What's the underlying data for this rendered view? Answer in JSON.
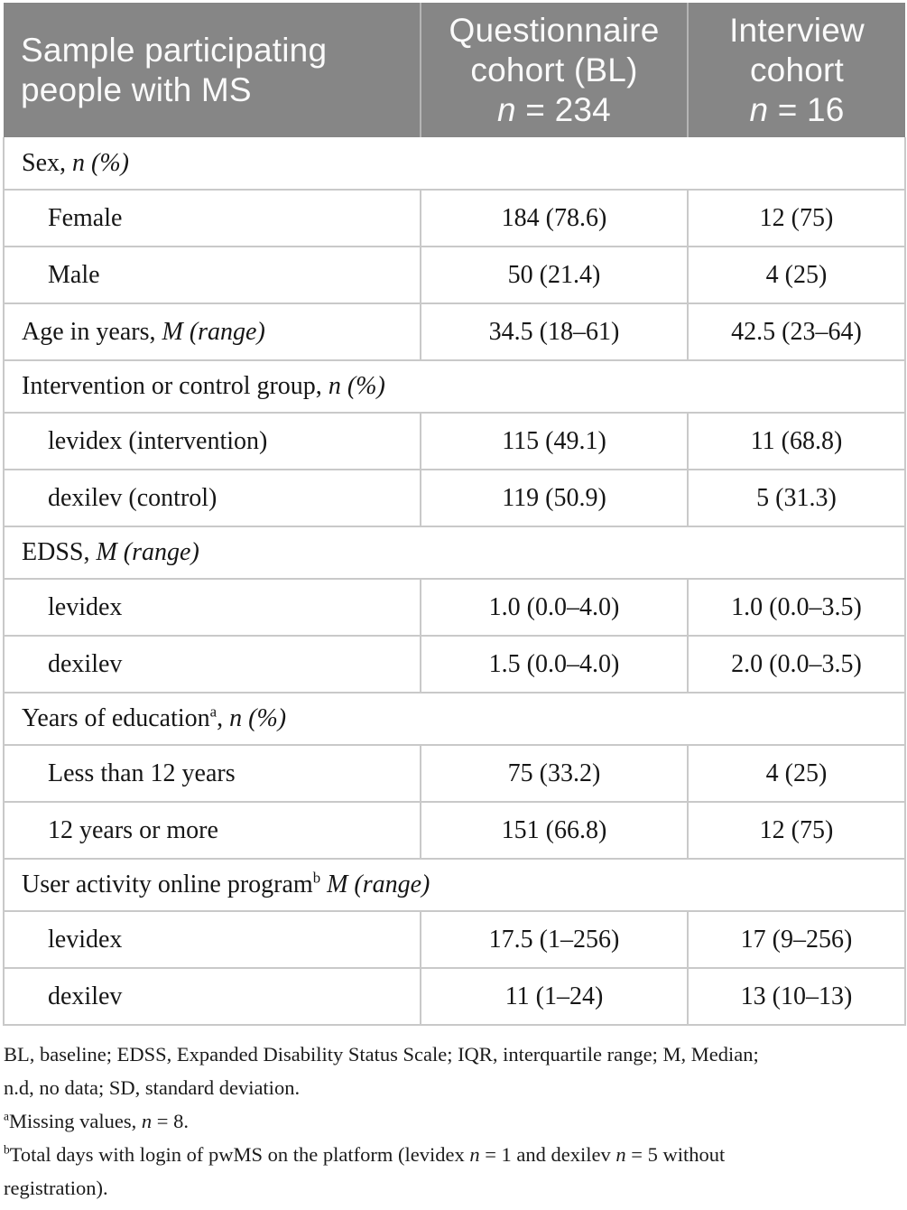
{
  "colors": {
    "header_background": "#868686",
    "header_text": "#fafafa",
    "header_divider": "#b4b4b4",
    "row_border": "#c9c9c9",
    "body_text": "#161616"
  },
  "table": {
    "header": {
      "columns": [
        {
          "id": "sample",
          "label": [
            {
              "t": "Sample participating people with MS"
            }
          ]
        },
        {
          "id": "questionnaire-cohort",
          "label": [
            {
              "t": "Questionnaire cohort (BL)"
            },
            {
              "br": true
            },
            {
              "t": "n",
              "i": true
            },
            {
              "t": " = 234"
            }
          ]
        },
        {
          "id": "interview-cohort",
          "label": [
            {
              "t": "Interview cohort"
            },
            {
              "br": true
            },
            {
              "t": "n",
              "i": true
            },
            {
              "t": " = 16"
            }
          ]
        }
      ]
    },
    "rows": [
      {
        "type": "section",
        "label": [
          {
            "t": "Sex, "
          },
          {
            "t": "n (%)",
            "i": true
          }
        ]
      },
      {
        "type": "data",
        "indent": true,
        "label": [
          {
            "t": "Female"
          }
        ],
        "values": [
          "184 (78.6)",
          "12 (75)"
        ]
      },
      {
        "type": "data",
        "indent": true,
        "label": [
          {
            "t": "Male"
          }
        ],
        "values": [
          "50 (21.4)",
          "4 (25)"
        ]
      },
      {
        "type": "data",
        "indent": false,
        "label": [
          {
            "t": "Age in years, "
          },
          {
            "t": "M (range)",
            "i": true
          }
        ],
        "values": [
          "34.5 (18–61)",
          "42.5 (23–64)"
        ]
      },
      {
        "type": "section",
        "label": [
          {
            "t": "Intervention or control group, "
          },
          {
            "t": "n (%)",
            "i": true
          }
        ]
      },
      {
        "type": "data",
        "indent": true,
        "label": [
          {
            "t": "levidex (intervention)"
          }
        ],
        "values": [
          "115 (49.1)",
          "11 (68.8)"
        ]
      },
      {
        "type": "data",
        "indent": true,
        "label": [
          {
            "t": "dexilev (control)"
          }
        ],
        "values": [
          "119 (50.9)",
          "5 (31.3)"
        ]
      },
      {
        "type": "section",
        "label": [
          {
            "t": "EDSS, "
          },
          {
            "t": "M (range)",
            "i": true
          }
        ]
      },
      {
        "type": "data",
        "indent": true,
        "label": [
          {
            "t": "levidex"
          }
        ],
        "values": [
          "1.0 (0.0–4.0)",
          "1.0 (0.0–3.5)"
        ]
      },
      {
        "type": "data",
        "indent": true,
        "label": [
          {
            "t": "dexilev"
          }
        ],
        "values": [
          "1.5 (0.0–4.0)",
          "2.0 (0.0–3.5)"
        ]
      },
      {
        "type": "section",
        "label": [
          {
            "t": "Years of education"
          },
          {
            "t": "a",
            "sup": true
          },
          {
            "t": ", "
          },
          {
            "t": "n (%)",
            "i": true
          }
        ]
      },
      {
        "type": "data",
        "indent": true,
        "label": [
          {
            "t": "Less than 12 years"
          }
        ],
        "values": [
          "75 (33.2)",
          "4 (25)"
        ]
      },
      {
        "type": "data",
        "indent": true,
        "label": [
          {
            "t": "12 years or more"
          }
        ],
        "values": [
          "151 (66.8)",
          "12 (75)"
        ]
      },
      {
        "type": "section",
        "label": [
          {
            "t": "User activity online program"
          },
          {
            "t": "b",
            "sup": true
          },
          {
            "t": " "
          },
          {
            "t": "M (range)",
            "i": true
          }
        ]
      },
      {
        "type": "data",
        "indent": true,
        "label": [
          {
            "t": "levidex"
          }
        ],
        "values": [
          "17.5 (1–256)",
          "17 (9–256)"
        ]
      },
      {
        "type": "data",
        "indent": true,
        "label": [
          {
            "t": "dexilev"
          }
        ],
        "values": [
          "11 (1–24)",
          "13 (10–13)"
        ]
      }
    ]
  },
  "footnotes": [
    {
      "id": "abbreviations",
      "segments": [
        {
          "t": "BL, baseline; EDSS, Expanded Disability Status Scale; IQR, interquartile range; M, Median;"
        },
        {
          "br": true
        },
        {
          "t": "n.d, no data; SD, standard deviation."
        }
      ]
    },
    {
      "id": "footnote-a",
      "segments": [
        {
          "t": "a",
          "sup": true
        },
        {
          "t": "Missing values, "
        },
        {
          "t": "n",
          "i": true
        },
        {
          "t": " = 8."
        }
      ]
    },
    {
      "id": "footnote-b",
      "segments": [
        {
          "t": "b",
          "sup": true
        },
        {
          "t": "Total days with login of pwMS on the platform (levidex "
        },
        {
          "t": "n",
          "i": true
        },
        {
          "t": " = 1 and dexilev "
        },
        {
          "t": "n",
          "i": true
        },
        {
          "t": " = 5 without"
        },
        {
          "br": true
        },
        {
          "t": "registration)."
        }
      ]
    }
  ]
}
